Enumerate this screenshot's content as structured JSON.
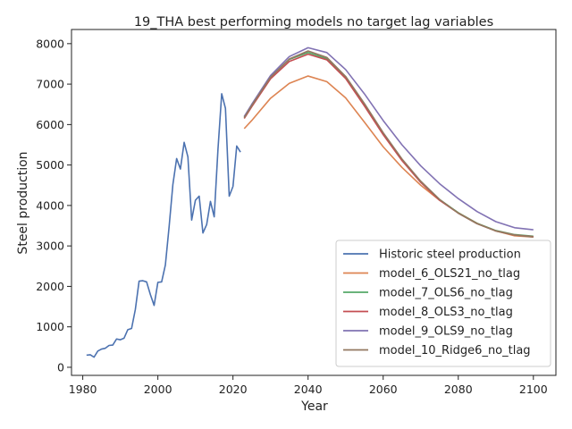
{
  "chart_data": {
    "type": "line",
    "title": "19_THA best performing models no target lag variables",
    "xlabel": "Year",
    "ylabel": "Steel production",
    "xlim": [
      1977,
      2106
    ],
    "ylim": [
      -200,
      8350
    ],
    "xticks": [
      1980,
      2000,
      2020,
      2040,
      2060,
      2080,
      2100
    ],
    "yticks": [
      0,
      1000,
      2000,
      3000,
      4000,
      5000,
      6000,
      7000,
      8000
    ],
    "xtick_labels": [
      "1980",
      "2000",
      "2020",
      "2040",
      "2060",
      "2080",
      "2100"
    ],
    "ytick_labels": [
      "0",
      "1000",
      "2000",
      "3000",
      "4000",
      "5000",
      "6000",
      "7000",
      "8000"
    ],
    "grid": false,
    "legend_position": "lower-right",
    "series": [
      {
        "name": "Historic steel production",
        "color": "#4c72b0",
        "x": [
          1981,
          1982,
          1983,
          1984,
          1985,
          1986,
          1987,
          1988,
          1989,
          1990,
          1991,
          1992,
          1993,
          1994,
          1995,
          1996,
          1997,
          1998,
          1999,
          2000,
          2001,
          2002,
          2003,
          2004,
          2005,
          2006,
          2007,
          2008,
          2009,
          2010,
          2011,
          2012,
          2013,
          2014,
          2015,
          2016,
          2017,
          2018,
          2019,
          2020,
          2021,
          2022
        ],
        "y": [
          300,
          310,
          250,
          400,
          450,
          470,
          540,
          550,
          700,
          680,
          720,
          930,
          960,
          1430,
          2130,
          2140,
          2110,
          1800,
          1530,
          2100,
          2110,
          2530,
          3480,
          4520,
          5160,
          4900,
          5560,
          5200,
          3640,
          4130,
          4230,
          3320,
          3530,
          4100,
          3720,
          5380,
          6760,
          6400,
          4230,
          4470,
          5470,
          5320
        ]
      },
      {
        "name": "model_6_OLS21_no_tlag",
        "color": "#dd8452",
        "x": [
          2023,
          2025,
          2030,
          2035,
          2040,
          2045,
          2050,
          2055,
          2060,
          2065,
          2070,
          2075,
          2080,
          2085,
          2090,
          2095,
          2100
        ],
        "y": [
          5900,
          6100,
          6650,
          7020,
          7200,
          7060,
          6660,
          6060,
          5450,
          4940,
          4500,
          4130,
          3820,
          3560,
          3370,
          3250,
          3220
        ]
      },
      {
        "name": "model_7_OLS6_no_tlag",
        "color": "#55a868",
        "x": [
          2023,
          2025,
          2030,
          2035,
          2040,
          2045,
          2050,
          2055,
          2060,
          2065,
          2070,
          2075,
          2080,
          2085,
          2090,
          2095,
          2100
        ],
        "y": [
          6180,
          6480,
          7180,
          7610,
          7780,
          7630,
          7180,
          6500,
          5780,
          5130,
          4590,
          4150,
          3820,
          3560,
          3380,
          3280,
          3240
        ]
      },
      {
        "name": "model_8_OLS3_no_tlag",
        "color": "#c44e52",
        "x": [
          2023,
          2025,
          2030,
          2035,
          2040,
          2045,
          2050,
          2055,
          2060,
          2065,
          2070,
          2075,
          2080,
          2085,
          2090,
          2095,
          2100
        ],
        "y": [
          6150,
          6440,
          7130,
          7560,
          7740,
          7600,
          7140,
          6460,
          5750,
          5110,
          4570,
          4130,
          3810,
          3550,
          3370,
          3270,
          3230
        ]
      },
      {
        "name": "model_9_OLS9_no_tlag",
        "color": "#8172b3",
        "x": [
          2023,
          2025,
          2030,
          2035,
          2040,
          2045,
          2050,
          2055,
          2060,
          2065,
          2070,
          2075,
          2080,
          2085,
          2090,
          2095,
          2100
        ],
        "y": [
          6200,
          6500,
          7210,
          7680,
          7900,
          7780,
          7360,
          6760,
          6100,
          5500,
          4980,
          4540,
          4170,
          3850,
          3600,
          3450,
          3400
        ]
      },
      {
        "name": "model_10_Ridge6_no_tlag",
        "color": "#937860",
        "x": [
          2023,
          2025,
          2030,
          2035,
          2040,
          2045,
          2050,
          2055,
          2060,
          2065,
          2070,
          2075,
          2080,
          2085,
          2090,
          2095,
          2100
        ],
        "y": [
          6170,
          6470,
          7170,
          7620,
          7820,
          7660,
          7190,
          6520,
          5800,
          5150,
          4600,
          4150,
          3810,
          3550,
          3370,
          3270,
          3220
        ]
      }
    ]
  }
}
